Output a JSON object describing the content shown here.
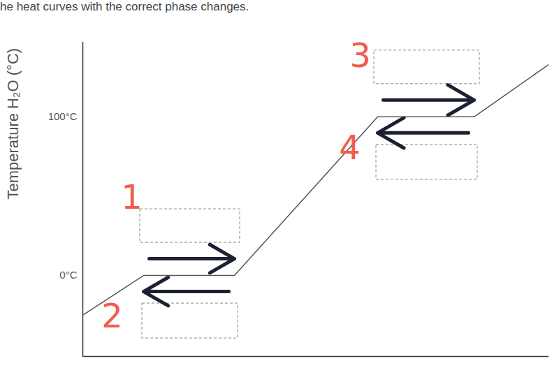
{
  "chart_data": {
    "type": "line",
    "title": "he heat curves with the correct phase changes.",
    "y_label": "Temperature H₂O (°C)",
    "x": [
      0,
      87,
      217,
      422,
      560,
      667
    ],
    "values": [
      -25,
      0,
      0,
      100,
      100,
      133
    ],
    "color": "#555555",
    "xlim": [
      0,
      667
    ],
    "ylim": [
      -51,
      147
    ],
    "yticks": [
      {
        "value": 0,
        "label": "0°C"
      },
      {
        "value": 100,
        "label": "100°C"
      }
    ],
    "tick_labels": "y",
    "grid": false,
    "annotations": [
      {
        "text": "1",
        "x": 70,
        "y": 49
      },
      {
        "text": "2",
        "x": 42,
        "y": -26
      },
      {
        "text": "3",
        "x": 397,
        "y": 138
      },
      {
        "text": "4",
        "x": 382,
        "y": 80
      }
    ]
  }
}
